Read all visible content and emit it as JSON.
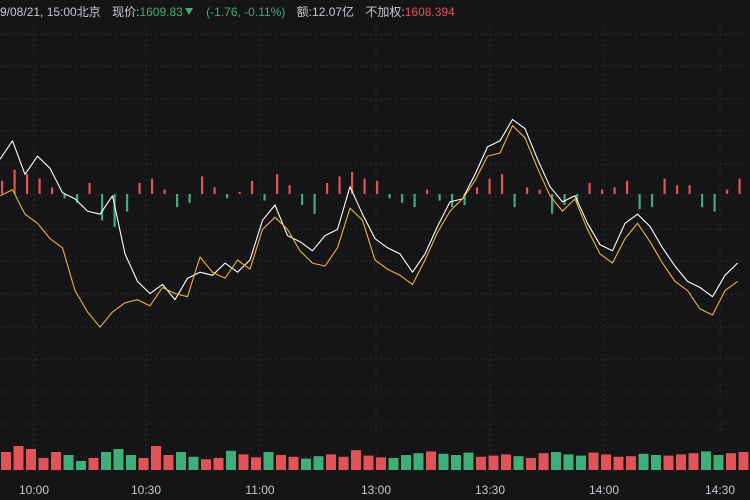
{
  "info": {
    "datetime": "9/08/21, 15:00",
    "city": "北京",
    "price_label": "现价:",
    "price": "1609.83",
    "change": "(-1.76, -0.11%)",
    "amount_label": "额:",
    "amount": "12.07亿",
    "adj_label": "不加权:",
    "unweighted": "1608.394"
  },
  "colors": {
    "background": "#151518",
    "price_line": "#ffffff",
    "avg_line": "#f0b233",
    "up": "#e05356",
    "down": "#3fae78"
  },
  "chart_data": {
    "type": "line",
    "x_ticks": [
      "10:00",
      "10:30",
      "11:00",
      "13:00",
      "13:30",
      "14:00",
      "14:30"
    ],
    "series": [
      {
        "color": "white",
        "points": [
          [
            0,
            1613.9
          ],
          [
            4,
            1614.5
          ],
          [
            8,
            1613.4
          ],
          [
            12,
            1614.0
          ],
          [
            16,
            1613.6
          ],
          [
            20,
            1612.8
          ],
          [
            24,
            1612.6
          ],
          [
            28,
            1612.2
          ],
          [
            32,
            1612.1
          ],
          [
            36,
            1612.7
          ],
          [
            40,
            1610.8
          ],
          [
            44,
            1609.9
          ],
          [
            48,
            1609.5
          ],
          [
            52,
            1609.8
          ],
          [
            56,
            1609.3
          ],
          [
            60,
            1610.0
          ],
          [
            64,
            1610.2
          ],
          [
            68,
            1610.1
          ],
          [
            72,
            1610.5
          ],
          [
            76,
            1610.2
          ],
          [
            80,
            1610.6
          ],
          [
            84,
            1611.9
          ],
          [
            88,
            1612.4
          ],
          [
            92,
            1611.4
          ],
          [
            96,
            1611.2
          ],
          [
            100,
            1610.9
          ],
          [
            104,
            1611.4
          ],
          [
            108,
            1611.6
          ],
          [
            112,
            1613.0
          ],
          [
            116,
            1612.1
          ],
          [
            120,
            1611.3
          ],
          [
            124,
            1611.0
          ],
          [
            128,
            1610.8
          ],
          [
            132,
            1610.2
          ],
          [
            136,
            1610.8
          ],
          [
            140,
            1611.7
          ],
          [
            144,
            1612.5
          ],
          [
            148,
            1612.6
          ],
          [
            152,
            1613.4
          ],
          [
            156,
            1614.3
          ],
          [
            160,
            1614.5
          ],
          [
            164,
            1615.2
          ],
          [
            168,
            1614.9
          ],
          [
            172,
            1613.9
          ],
          [
            176,
            1613.0
          ],
          [
            180,
            1612.5
          ],
          [
            184,
            1612.7
          ],
          [
            188,
            1611.8
          ],
          [
            192,
            1611.1
          ],
          [
            196,
            1610.9
          ],
          [
            200,
            1611.8
          ],
          [
            204,
            1612.1
          ],
          [
            208,
            1611.7
          ],
          [
            212,
            1611.0
          ],
          [
            216,
            1610.4
          ],
          [
            220,
            1609.9
          ],
          [
            224,
            1609.7
          ],
          [
            228,
            1609.4
          ],
          [
            232,
            1610.1
          ],
          [
            236,
            1610.5
          ]
        ]
      },
      {
        "color": "orange",
        "points": [
          [
            0,
            1612.7
          ],
          [
            4,
            1612.9
          ],
          [
            8,
            1612.1
          ],
          [
            12,
            1611.8
          ],
          [
            16,
            1611.3
          ],
          [
            20,
            1611.0
          ],
          [
            24,
            1609.6
          ],
          [
            28,
            1608.9
          ],
          [
            32,
            1608.4
          ],
          [
            36,
            1608.9
          ],
          [
            40,
            1609.2
          ],
          [
            44,
            1609.3
          ],
          [
            48,
            1609.1
          ],
          [
            52,
            1609.7
          ],
          [
            56,
            1609.5
          ],
          [
            60,
            1609.4
          ],
          [
            64,
            1610.7
          ],
          [
            68,
            1610.2
          ],
          [
            72,
            1610.0
          ],
          [
            76,
            1610.6
          ],
          [
            80,
            1610.3
          ],
          [
            84,
            1611.6
          ],
          [
            88,
            1612.0
          ],
          [
            92,
            1611.6
          ],
          [
            96,
            1610.9
          ],
          [
            100,
            1610.5
          ],
          [
            104,
            1610.4
          ],
          [
            108,
            1611.0
          ],
          [
            112,
            1612.3
          ],
          [
            116,
            1611.9
          ],
          [
            120,
            1610.6
          ],
          [
            124,
            1610.3
          ],
          [
            128,
            1610.1
          ],
          [
            132,
            1609.8
          ],
          [
            136,
            1610.6
          ],
          [
            140,
            1611.5
          ],
          [
            144,
            1612.2
          ],
          [
            148,
            1612.6
          ],
          [
            152,
            1613.2
          ],
          [
            156,
            1614.0
          ],
          [
            160,
            1614.1
          ],
          [
            164,
            1615.0
          ],
          [
            168,
            1614.6
          ],
          [
            172,
            1613.6
          ],
          [
            176,
            1612.7
          ],
          [
            180,
            1612.2
          ],
          [
            184,
            1612.6
          ],
          [
            188,
            1611.6
          ],
          [
            192,
            1610.8
          ],
          [
            196,
            1610.5
          ],
          [
            200,
            1611.3
          ],
          [
            204,
            1611.8
          ],
          [
            208,
            1611.2
          ],
          [
            212,
            1610.5
          ],
          [
            216,
            1609.9
          ],
          [
            220,
            1609.6
          ],
          [
            224,
            1609.0
          ],
          [
            228,
            1608.8
          ],
          [
            232,
            1609.6
          ],
          [
            236,
            1609.9
          ]
        ]
      }
    ],
    "diff_bars": [
      0.6,
      1.1,
      0.9,
      0.7,
      0.3,
      -0.2,
      -0.4,
      0.5,
      -1.2,
      -1.5,
      -0.8,
      0.5,
      0.7,
      0.2,
      -0.6,
      -0.4,
      0.8,
      0.3,
      -0.2,
      0.1,
      0.6,
      -0.3,
      0.9,
      0.4,
      -0.5,
      -0.9,
      0.5,
      0.8,
      1.0,
      0.7,
      0.6,
      -0.2,
      -0.4,
      -0.6,
      0.2,
      -0.3,
      -0.6,
      -0.5,
      0.3,
      0.7,
      0.9,
      -0.6,
      0.3,
      0.2,
      -0.9,
      -0.5,
      -0.4,
      0.5,
      0.2,
      0.3,
      0.6,
      -0.7,
      -0.6,
      0.7,
      0.4,
      0.4,
      -0.6,
      -0.8,
      0.2,
      0.7
    ],
    "volume": [
      3,
      4,
      3.5,
      2,
      3,
      2.5,
      1.5,
      2,
      3,
      3.5,
      2.5,
      2,
      4,
      2.5,
      3,
      2.2,
      1.8,
      2,
      3.2,
      2.6,
      2.1,
      3.0,
      2.5,
      2.2,
      1.9,
      2.3,
      2.6,
      2.2,
      3.3,
      2.4,
      2.1,
      2.0,
      2.5,
      2.8,
      3.1,
      2.7,
      2.5,
      2.9,
      2.2,
      2.4,
      2.6,
      2.3,
      2.0,
      2.8,
      3.0,
      2.6,
      2.4,
      2.9,
      2.6,
      2.2,
      2.3,
      2.7,
      2.5,
      2.4,
      2.6,
      2.8,
      3.1,
      2.5,
      2.8,
      3.0
    ]
  }
}
